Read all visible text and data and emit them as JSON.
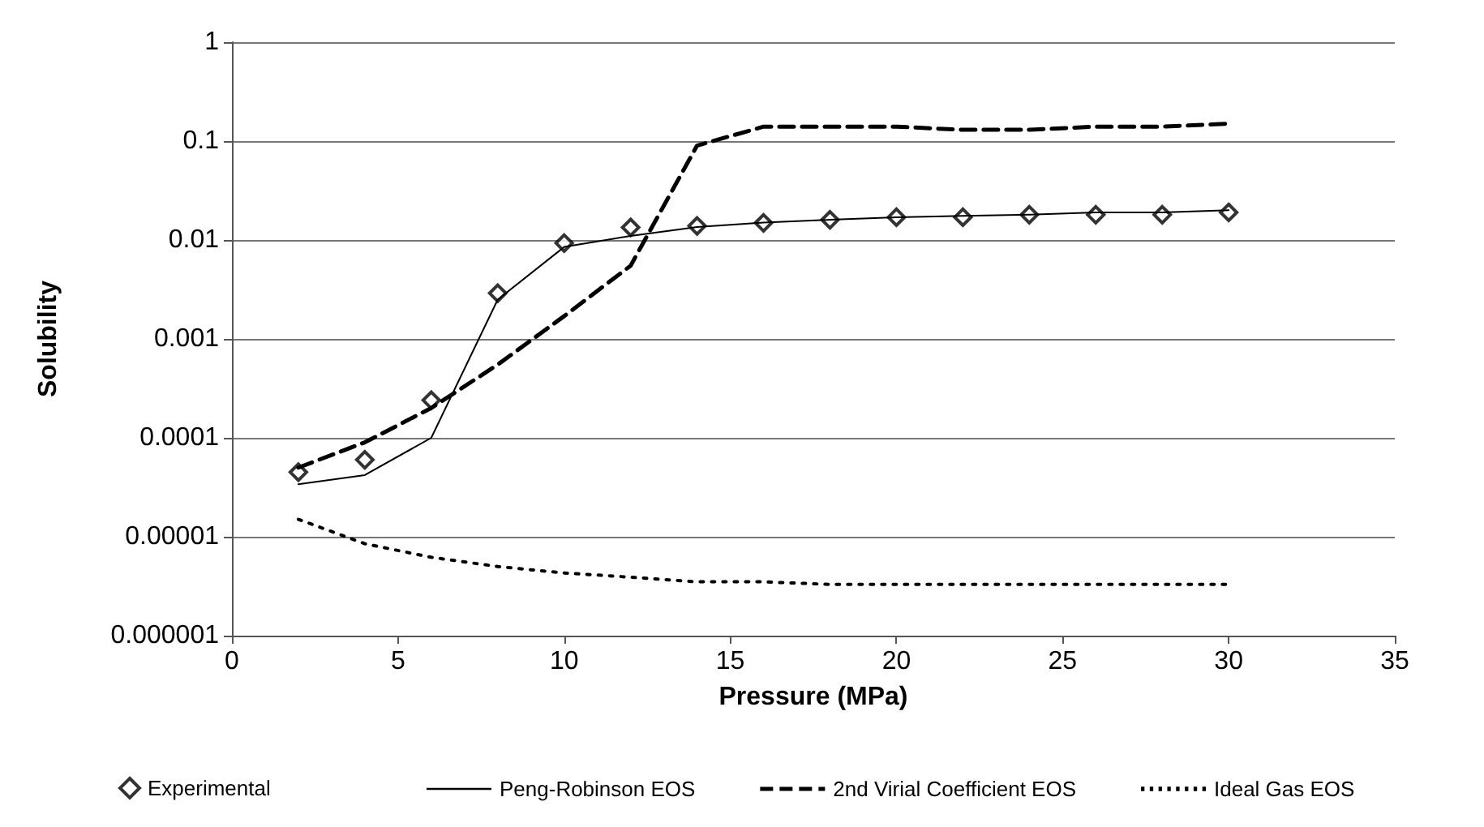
{
  "chart_data": {
    "type": "line",
    "xlabel": "Pressure (MPa)",
    "ylabel": "Solubility",
    "x": [
      2,
      4,
      6,
      8,
      10,
      12,
      14,
      16,
      18,
      20,
      22,
      24,
      26,
      28,
      30
    ],
    "series": [
      {
        "name": "Experimental",
        "type": "scatter",
        "marker": "diamond",
        "color": "#000000",
        "values": [
          4.5e-05,
          6e-05,
          0.00024,
          0.0029,
          0.0093,
          0.0134,
          0.0139,
          0.0149,
          0.016,
          0.017,
          0.017,
          0.018,
          0.018,
          0.018,
          0.019
        ]
      },
      {
        "name": "Peng-Robinson EOS",
        "line_style": "solid",
        "color": "#000000",
        "values": [
          3.4e-05,
          4.2e-05,
          0.0001,
          0.0025,
          0.0085,
          0.011,
          0.0135,
          0.015,
          0.016,
          0.017,
          0.0175,
          0.018,
          0.019,
          0.019,
          0.02
        ]
      },
      {
        "name": "2nd Virial Coefficient EOS",
        "line_style": "dashed",
        "color": "#000000",
        "values": [
          5e-05,
          9e-05,
          0.0002,
          0.00055,
          0.0017,
          0.0055,
          0.09,
          0.14,
          0.14,
          0.14,
          0.13,
          0.13,
          0.14,
          0.14,
          0.15
        ]
      },
      {
        "name": "Ideal Gas EOS",
        "line_style": "dotted",
        "color": "#000000",
        "values": [
          1.5e-05,
          8.5e-06,
          6.2e-06,
          5e-06,
          4.3e-06,
          3.9e-06,
          3.5e-06,
          3.5e-06,
          3.3e-06,
          3.3e-06,
          3.3e-06,
          3.3e-06,
          3.3e-06,
          3.3e-06,
          3.3e-06
        ]
      }
    ],
    "log": "y",
    "xlim": [
      0,
      35
    ],
    "xticks": [
      0,
      5,
      10,
      15,
      20,
      25,
      30,
      35
    ],
    "ylim": [
      1e-06,
      1
    ],
    "yticks": [
      {
        "value": 1e-06,
        "label": "0.000001"
      },
      {
        "value": 1e-05,
        "label": "0.00001"
      },
      {
        "value": 0.0001,
        "label": "0.0001"
      },
      {
        "value": 0.001,
        "label": "0.001"
      },
      {
        "value": 0.01,
        "label": "0.01"
      },
      {
        "value": 0.1,
        "label": "0.1"
      },
      {
        "value": 1,
        "label": "1"
      }
    ],
    "grid": "y",
    "legend": "bottom"
  }
}
